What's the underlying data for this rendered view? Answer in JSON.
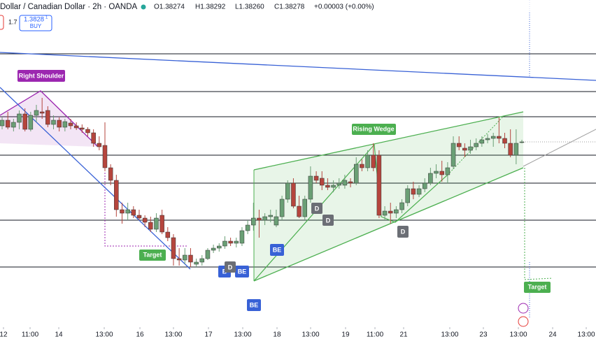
{
  "header": {
    "title": "Dollar / Canadian Dollar · 2h · OANDA",
    "open": "O1.38274",
    "high": "H1.38292",
    "low": "L1.38260",
    "close": "C1.38278",
    "change": "+0.00003 (+0.00%)",
    "spread": "1.7",
    "buy_price": "1.3828",
    "buy_price_small": "1",
    "buy": "BUY"
  },
  "annotations": {
    "right_shoulder": "Right Shoulder",
    "rising_wedge": "Rising Wedge",
    "target_1": "Target",
    "target_2": "Target",
    "be_1": "BE",
    "be_2": "BE",
    "be_3": "BE",
    "b_1": "B",
    "d_1": "D",
    "d_2": "D",
    "d_3": "D",
    "d_4": "D"
  },
  "chart_data": {
    "type": "candlestick",
    "up_color": "#6a9f75",
    "down_color": "#b5453d",
    "xlim": [
      -0.37,
      103.98
    ],
    "ylim": [
      1.3696,
      1.393
    ],
    "xticks": [
      {
        "value": 0.24,
        "label": "12"
      },
      {
        "value": 4.9,
        "label": "11:00"
      },
      {
        "value": 9.92,
        "label": "14"
      },
      {
        "value": 17.88,
        "label": "13:00"
      },
      {
        "value": 24.13,
        "label": "16"
      },
      {
        "value": 30.0,
        "label": "13:00"
      },
      {
        "value": 36.13,
        "label": "17"
      },
      {
        "value": 42.13,
        "label": "13:00"
      },
      {
        "value": 48.13,
        "label": "18"
      },
      {
        "value": 54.01,
        "label": "13:00"
      },
      {
        "value": 60.13,
        "label": "19"
      },
      {
        "value": 65.28,
        "label": "11:00"
      },
      {
        "value": 70.3,
        "label": "21"
      },
      {
        "value": 78.38,
        "label": "13:00"
      },
      {
        "value": 84.26,
        "label": "23"
      },
      {
        "value": 90.39,
        "label": "13:00"
      },
      {
        "value": 96.39,
        "label": "24"
      },
      {
        "value": 102.27,
        "label": "13:00"
      }
    ],
    "x": [
      0,
      1,
      2,
      3,
      4,
      5,
      6,
      7,
      8,
      9,
      10,
      11,
      12,
      13,
      14,
      15,
      16,
      17,
      18,
      19,
      20,
      21,
      22,
      23,
      24,
      25,
      26,
      27,
      28,
      29,
      30,
      31,
      32,
      33,
      34,
      35,
      36,
      37,
      38,
      39,
      40,
      41,
      42,
      43,
      44,
      45,
      46,
      47,
      48,
      49,
      50,
      51,
      52,
      53,
      54,
      55,
      56,
      57,
      58,
      59,
      60,
      61,
      62,
      63,
      64,
      65,
      66,
      67,
      68,
      69,
      70,
      71,
      72,
      73,
      74,
      75,
      76,
      77,
      78,
      79,
      80,
      81,
      82,
      83,
      84,
      85,
      86,
      87,
      88,
      89,
      90,
      91
    ],
    "open": [
      1.384,
      1.3844,
      1.3839,
      1.38425,
      1.38485,
      1.38375,
      1.38475,
      1.385,
      1.3851,
      1.3841,
      1.3844,
      1.3839,
      1.3842,
      1.384,
      1.38385,
      1.38375,
      1.3835,
      1.38275,
      1.3826,
      1.381,
      1.3801,
      1.378,
      1.37775,
      1.378,
      1.3776,
      1.3774,
      1.3771,
      1.3766,
      1.3776,
      1.3764,
      1.376,
      1.3745,
      1.3744,
      1.37475,
      1.3741,
      1.37425,
      1.3745,
      1.3751,
      1.37525,
      1.3754,
      1.37575,
      1.3756,
      1.3756,
      1.3765,
      1.3769,
      1.3774,
      1.37725,
      1.3775,
      1.3769,
      1.3775,
      1.37875,
      1.3799,
      1.37825,
      1.3775,
      1.37875,
      1.3804,
      1.38025,
      1.37975,
      1.3796,
      1.37975,
      1.37975,
      1.38,
      1.3799,
      1.38125,
      1.381,
      1.3819,
      1.3819,
      1.3776,
      1.3779,
      1.37775,
      1.378,
      1.3785,
      1.3795,
      1.3791,
      1.3795,
      1.3799,
      1.3806,
      1.38075,
      1.3805,
      1.3811,
      1.38275,
      1.3824,
      1.38225,
      1.3825,
      1.38275,
      1.383,
      1.3831,
      1.38325,
      1.3831,
      1.38275,
      1.3819,
      1.38285
    ],
    "high": [
      1.3846,
      1.385,
      1.3845,
      1.3851,
      1.38525,
      1.385,
      1.3855,
      1.386,
      1.3854,
      1.38475,
      1.3846,
      1.3845,
      1.3845,
      1.38425,
      1.3841,
      1.3839,
      1.38375,
      1.38325,
      1.38425,
      1.38125,
      1.3805,
      1.3785,
      1.3785,
      1.37825,
      1.378,
      1.3776,
      1.3775,
      1.37775,
      1.378,
      1.37675,
      1.37625,
      1.37525,
      1.37525,
      1.37525,
      1.3745,
      1.37475,
      1.37525,
      1.3755,
      1.3756,
      1.3761,
      1.376,
      1.376,
      1.37675,
      1.37725,
      1.3785,
      1.378,
      1.37775,
      1.378,
      1.378,
      1.379,
      1.3801,
      1.38025,
      1.379,
      1.379,
      1.3811,
      1.38075,
      1.38075,
      1.38025,
      1.3801,
      1.38025,
      1.3805,
      1.38025,
      1.38175,
      1.3816,
      1.38225,
      1.38275,
      1.38225,
      1.37825,
      1.3785,
      1.37825,
      1.37875,
      1.37975,
      1.38,
      1.37975,
      1.38025,
      1.381,
      1.38125,
      1.3815,
      1.3814,
      1.38325,
      1.38325,
      1.38275,
      1.383,
      1.3831,
      1.38325,
      1.3834,
      1.3835,
      1.3846,
      1.3835,
      1.38375,
      1.38375,
      1.383
    ],
    "low": [
      1.38375,
      1.38375,
      1.3836,
      1.38375,
      1.3836,
      1.3836,
      1.38425,
      1.3845,
      1.3839,
      1.38375,
      1.3836,
      1.3836,
      1.38375,
      1.3837,
      1.3835,
      1.38325,
      1.3825,
      1.38225,
      1.38075,
      1.37975,
      1.3775,
      1.377,
      1.37725,
      1.3774,
      1.37725,
      1.37675,
      1.3764,
      1.3764,
      1.37625,
      1.37575,
      1.374,
      1.374,
      1.3741,
      1.3739,
      1.3739,
      1.374,
      1.3744,
      1.3749,
      1.375,
      1.3752,
      1.3754,
      1.3753,
      1.3754,
      1.37625,
      1.3765,
      1.376,
      1.3769,
      1.3771,
      1.37675,
      1.37725,
      1.3785,
      1.3781,
      1.3774,
      1.37725,
      1.3785,
      1.3799,
      1.3794,
      1.3794,
      1.37925,
      1.3795,
      1.3795,
      1.3796,
      1.37975,
      1.38075,
      1.38075,
      1.38075,
      1.3774,
      1.37725,
      1.377,
      1.3774,
      1.37775,
      1.37825,
      1.37875,
      1.3789,
      1.37925,
      1.37975,
      1.38025,
      1.38,
      1.3799,
      1.3809,
      1.38225,
      1.38175,
      1.382,
      1.38225,
      1.3825,
      1.38275,
      1.3825,
      1.38275,
      1.3824,
      1.38175,
      1.38125,
      1.38275
    ],
    "close": [
      1.3844,
      1.3839,
      1.38425,
      1.38485,
      1.38375,
      1.38475,
      1.3851,
      1.3849,
      1.3841,
      1.3844,
      1.3839,
      1.3843,
      1.384,
      1.38385,
      1.38375,
      1.3835,
      1.38275,
      1.3825,
      1.381,
      1.3801,
      1.378,
      1.37775,
      1.378,
      1.3776,
      1.3774,
      1.3771,
      1.3766,
      1.3774,
      1.3764,
      1.376,
      1.3745,
      1.3744,
      1.37475,
      1.37425,
      1.37425,
      1.3745,
      1.3751,
      1.37525,
      1.3754,
      1.37575,
      1.3756,
      1.37575,
      1.3765,
      1.3769,
      1.3774,
      1.37725,
      1.3775,
      1.3776,
      1.3775,
      1.37875,
      1.3799,
      1.37825,
      1.3775,
      1.37875,
      1.3804,
      1.3801,
      1.37975,
      1.3796,
      1.37975,
      1.3799,
      1.3801,
      1.3799,
      1.38125,
      1.381,
      1.3819,
      1.381,
      1.3776,
      1.3779,
      1.37775,
      1.378,
      1.3785,
      1.3795,
      1.3791,
      1.3795,
      1.3799,
      1.3806,
      1.38075,
      1.3805,
      1.381,
      1.38275,
      1.3825,
      1.38225,
      1.3825,
      1.38275,
      1.383,
      1.3831,
      1.38325,
      1.3831,
      1.38275,
      1.3819,
      1.38275,
      1.38285
    ]
  }
}
